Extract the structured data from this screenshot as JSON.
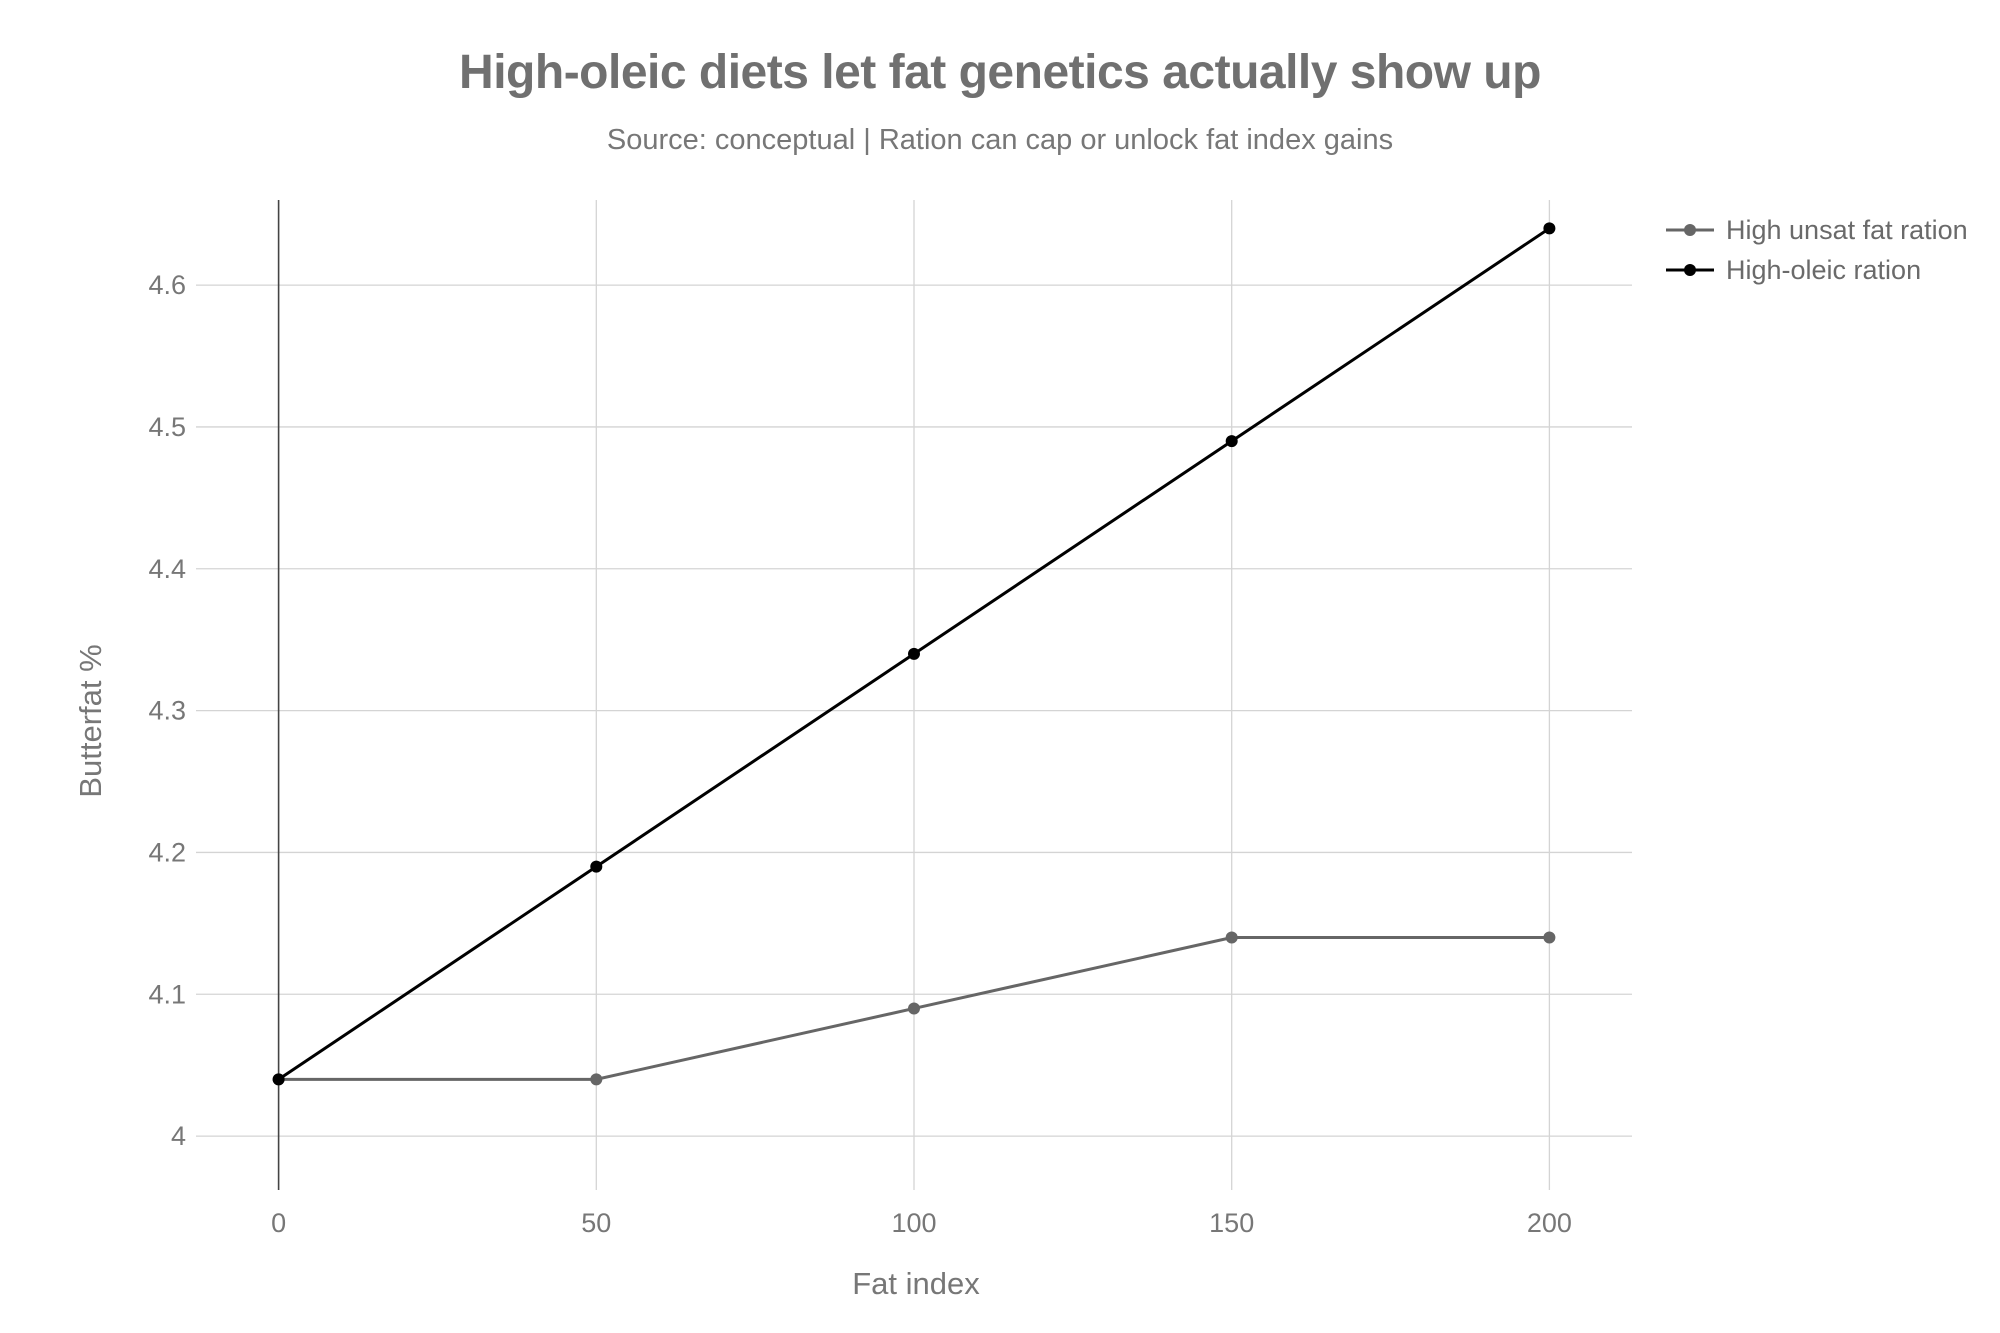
{
  "chart_data": {
    "type": "line",
    "title": "High-oleic diets let fat genetics actually show up",
    "subtitle": "Source: conceptual | Ration can cap or unlock fat index gains",
    "xlabel": "Fat index",
    "ylabel": "Butterfat %",
    "x": [
      0,
      50,
      100,
      150,
      200
    ],
    "x_ticks": [
      "0",
      "50",
      "100",
      "150",
      "200"
    ],
    "y_ticks": [
      "4",
      "4.1",
      "4.2",
      "4.3",
      "4.4",
      "4.5",
      "4.6"
    ],
    "y_tick_values": [
      4.0,
      4.1,
      4.2,
      4.3,
      4.4,
      4.5,
      4.6
    ],
    "xlim": [
      -13,
      213
    ],
    "ylim": [
      3.962,
      4.66
    ],
    "grid": true,
    "legend_position": "top-right",
    "series": [
      {
        "name": "High unsat fat ration",
        "color": "#666666",
        "values": [
          4.04,
          4.04,
          4.09,
          4.14,
          4.14
        ]
      },
      {
        "name": "High-oleic ration",
        "color": "#000000",
        "values": [
          4.04,
          4.19,
          4.34,
          4.49,
          4.64
        ]
      }
    ]
  }
}
